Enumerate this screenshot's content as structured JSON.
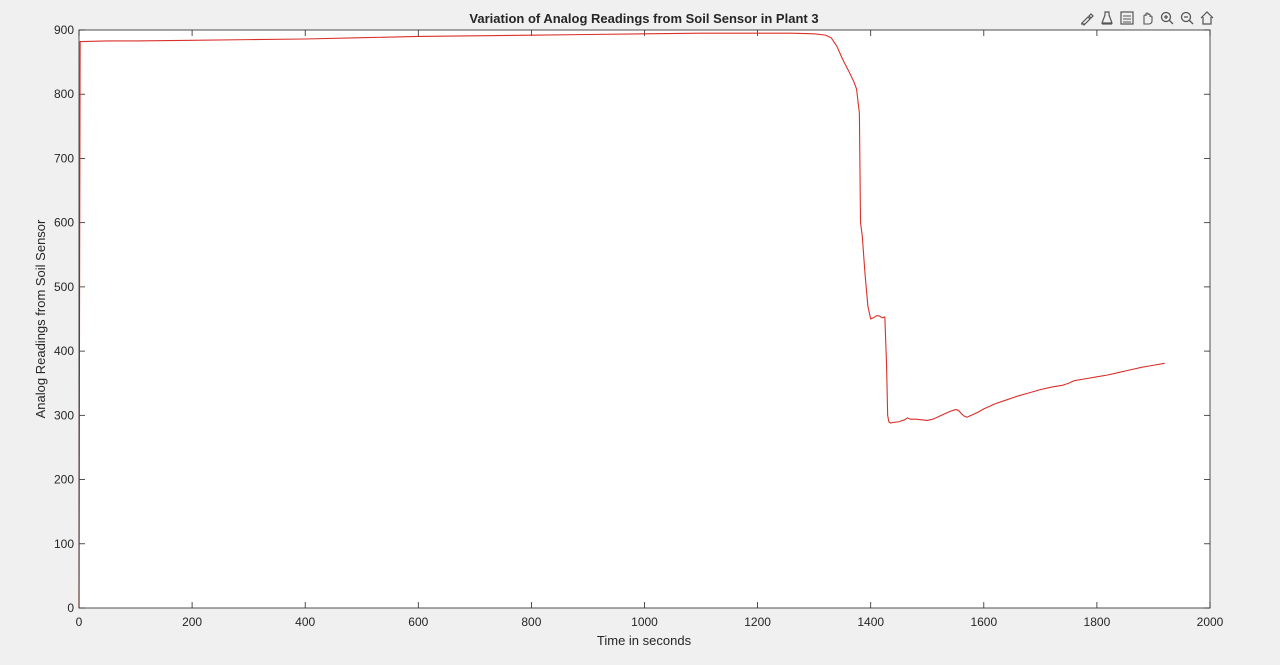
{
  "toolbar": {
    "icons": [
      "brush-icon",
      "data-tips-icon",
      "save-icon",
      "pan-icon",
      "zoom-in-icon",
      "zoom-out-icon",
      "home-icon"
    ]
  },
  "chart_data": {
    "type": "line",
    "title": "Variation of Analog Readings from Soil Sensor in Plant 3",
    "xlabel": "Time in seconds",
    "ylabel": "Analog Readings from Soil Sensor",
    "xlim": [
      0,
      2000
    ],
    "ylim": [
      0,
      900
    ],
    "xticks": [
      0,
      200,
      400,
      600,
      800,
      1000,
      1200,
      1400,
      1600,
      1800,
      2000
    ],
    "yticks": [
      0,
      100,
      200,
      300,
      400,
      500,
      600,
      700,
      800,
      900
    ],
    "grid": false,
    "legend": "none",
    "series": [
      {
        "color": "#d9302a",
        "x": [
          0,
          1,
          2,
          5,
          50,
          100,
          200,
          300,
          400,
          500,
          600,
          700,
          800,
          900,
          1000,
          1100,
          1200,
          1260,
          1300,
          1320,
          1330,
          1340,
          1350,
          1360,
          1370,
          1375,
          1380,
          1382,
          1385,
          1390,
          1395,
          1400,
          1405,
          1410,
          1415,
          1420,
          1425,
          1428,
          1430,
          1432,
          1435,
          1440,
          1450,
          1460,
          1465,
          1470,
          1480,
          1490,
          1500,
          1510,
          1520,
          1530,
          1540,
          1550,
          1555,
          1560,
          1565,
          1570,
          1575,
          1580,
          1590,
          1600,
          1610,
          1620,
          1640,
          1660,
          1680,
          1700,
          1720,
          1740,
          1750,
          1760,
          1780,
          1800,
          1820,
          1840,
          1860,
          1880,
          1900,
          1920
        ],
        "y": [
          0,
          500,
          882,
          882,
          883,
          883,
          884,
          885,
          886,
          888,
          890,
          891,
          892,
          893,
          894,
          895,
          895,
          895,
          894,
          892,
          888,
          875,
          855,
          838,
          820,
          808,
          770,
          600,
          580,
          520,
          470,
          450,
          452,
          455,
          455,
          452,
          453,
          380,
          300,
          290,
          288,
          289,
          290,
          293,
          296,
          294,
          294,
          293,
          292,
          294,
          298,
          302,
          306,
          309,
          308,
          303,
          299,
          297,
          299,
          301,
          305,
          310,
          314,
          318,
          324,
          330,
          335,
          340,
          344,
          347,
          350,
          354,
          357,
          360,
          363,
          367,
          371,
          375,
          378,
          381
        ]
      }
    ]
  }
}
